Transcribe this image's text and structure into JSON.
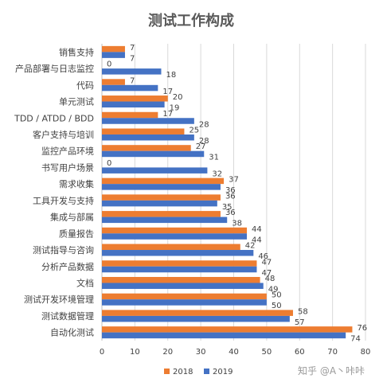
{
  "chart_data": {
    "type": "bar",
    "orientation": "horizontal",
    "title": "测试工作构成",
    "categories": [
      "销售支持",
      "产品部署与日志监控",
      "代码",
      "单元测试",
      "TDD / ATDD / BDD",
      "客户支持与培训",
      "监控产品环境",
      "书写用户场景",
      "需求收集",
      "工具开发与支持",
      "集成与部属",
      "质量报告",
      "测试指导与咨询",
      "分析产品数据",
      "文档",
      "测试开发环境管理",
      "测试数据管理",
      "自动化测试"
    ],
    "series": [
      {
        "name": "2018",
        "color": "#ED7D31",
        "values": [
          7,
          0,
          7,
          20,
          17,
          25,
          27,
          0,
          37,
          36,
          36,
          44,
          42,
          47,
          48,
          50,
          58,
          76
        ]
      },
      {
        "name": "2019",
        "color": "#4472C4",
        "values": [
          7,
          18,
          17,
          19,
          28,
          28,
          31,
          32,
          36,
          35,
          38,
          44,
          46,
          47,
          49,
          50,
          57,
          74
        ]
      }
    ],
    "xlim": [
      0,
      80
    ],
    "xticks": [
      "0",
      "10",
      "20",
      "30",
      "40",
      "50",
      "60",
      "70",
      "80"
    ],
    "grid": true,
    "legend": "bottom"
  },
  "watermark": "知乎 @A丶咔咔"
}
